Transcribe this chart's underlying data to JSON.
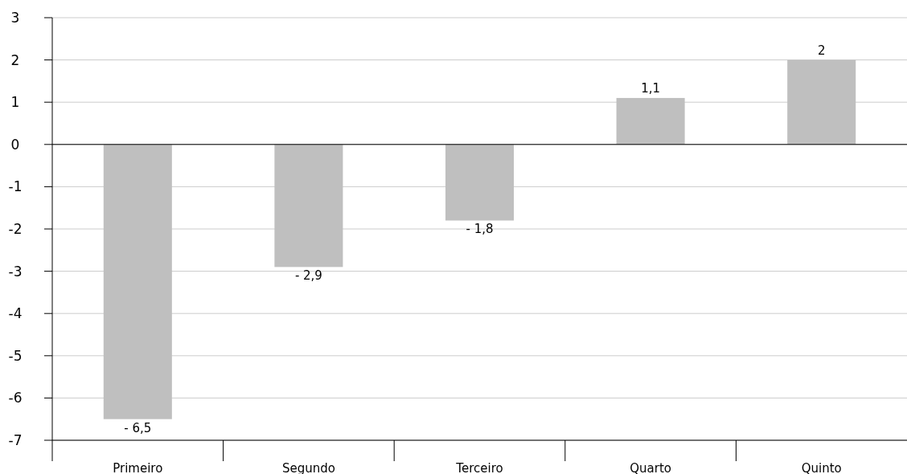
{
  "chart_data": {
    "type": "bar",
    "categories": [
      "Primeiro",
      "Segundo",
      "Terceiro",
      "Quarto",
      "Quinto"
    ],
    "values": [
      -6.5,
      -2.9,
      -1.8,
      1.1,
      2
    ],
    "value_labels": [
      "- 6,5",
      "- 2,9",
      "- 1,8",
      "1,1",
      "2"
    ],
    "color": "#bfbfbf",
    "ylim": [
      -7,
      3
    ],
    "yticks": [
      -7,
      -6,
      -5,
      -4,
      -3,
      -2,
      -1,
      0,
      1,
      2,
      3
    ],
    "grid": "y"
  }
}
